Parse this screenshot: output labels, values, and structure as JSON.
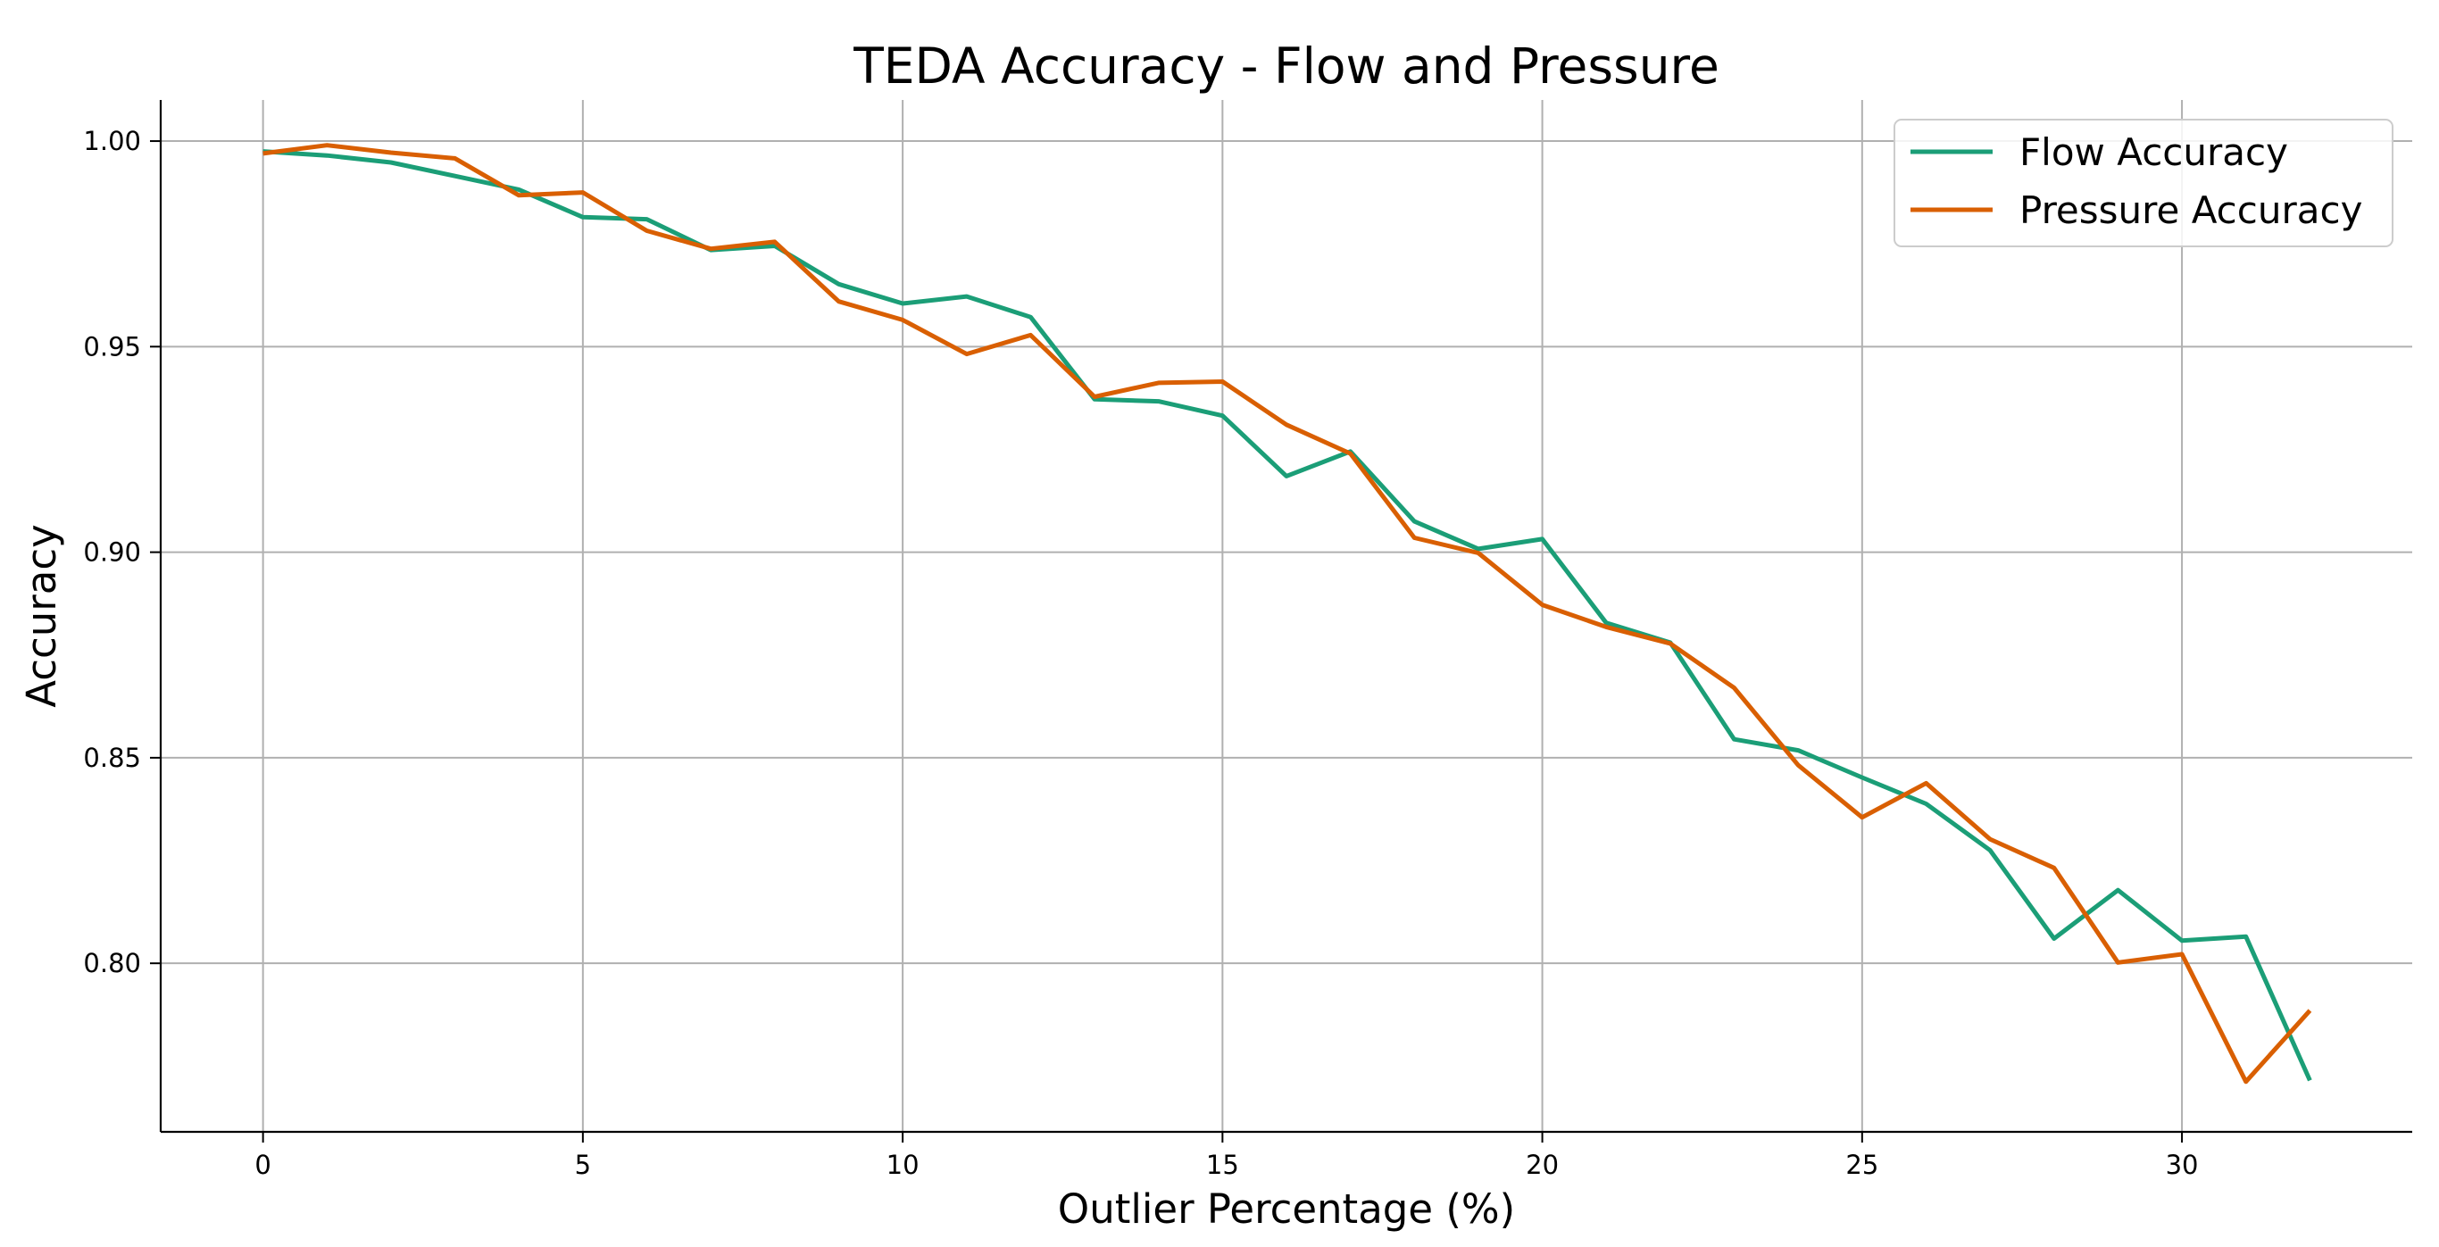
{
  "chart_data": {
    "type": "line",
    "title": "TEDA Accuracy - Flow and Pressure",
    "xlabel": "Outlier Percentage (%)",
    "ylabel": "Accuracy",
    "xlim": [
      -1.6,
      33.6
    ],
    "ylim": [
      0.759,
      1.01
    ],
    "xticks": [
      0,
      5,
      10,
      15,
      20,
      25,
      30
    ],
    "yticks": [
      0.8,
      0.85,
      0.9,
      0.95,
      1.0
    ],
    "xtick_labels": [
      "0",
      "5",
      "10",
      "15",
      "20",
      "25",
      "30"
    ],
    "ytick_labels": [
      "0.80",
      "0.85",
      "0.90",
      "0.95",
      "1.00"
    ],
    "grid": true,
    "legend_position": "top-right",
    "x": [
      0,
      1,
      2,
      3,
      4,
      5,
      6,
      7,
      8,
      9,
      10,
      11,
      12,
      13,
      14,
      15,
      16,
      17,
      18,
      19,
      20,
      21,
      22,
      23,
      24,
      25,
      26,
      27,
      28,
      29,
      30,
      31,
      32
    ],
    "series": [
      {
        "name": "Flow Accuracy",
        "color": "#1b9e77",
        "values": [
          0.9975,
          0.9965,
          0.9948,
          0.9915,
          0.9882,
          0.9815,
          0.981,
          0.9735,
          0.9745,
          0.9652,
          0.9605,
          0.9622,
          0.9572,
          0.9372,
          0.9367,
          0.9332,
          0.9185,
          0.9245,
          0.9075,
          0.9008,
          0.9032,
          0.8828,
          0.878,
          0.8545,
          0.8518,
          0.8452,
          0.8388,
          0.8275,
          0.806,
          0.8178,
          0.8055,
          0.8065,
          0.7715
        ]
      },
      {
        "name": "Pressure Accuracy",
        "color": "#d95f02",
        "values": [
          0.997,
          0.999,
          0.9972,
          0.9958,
          0.9868,
          0.9875,
          0.9782,
          0.9738,
          0.9755,
          0.961,
          0.9565,
          0.9482,
          0.9528,
          0.9378,
          0.9412,
          0.9415,
          0.931,
          0.924,
          0.9035,
          0.8998,
          0.8872,
          0.8818,
          0.8778,
          0.867,
          0.8482,
          0.8355,
          0.8438,
          0.8302,
          0.8232,
          0.8002,
          0.8022,
          0.7712,
          0.7885
        ]
      }
    ]
  }
}
